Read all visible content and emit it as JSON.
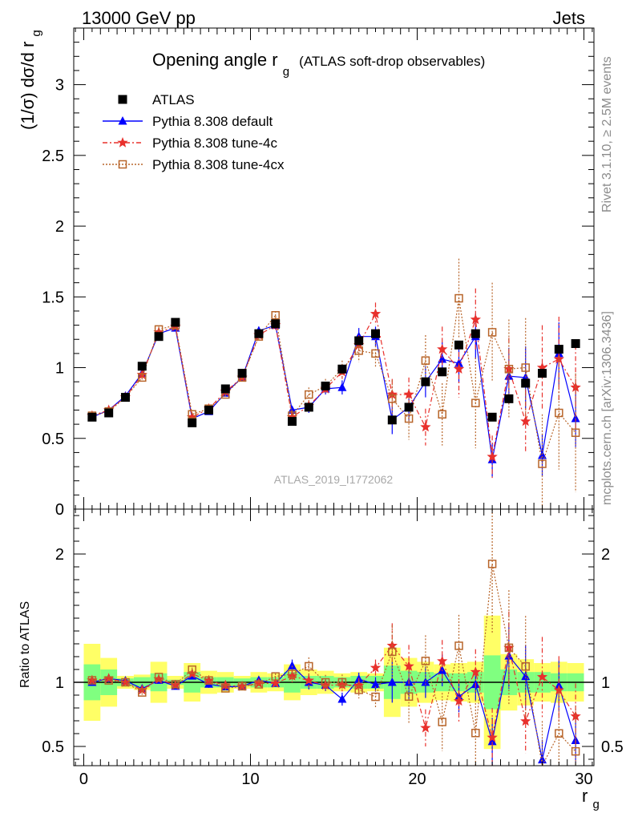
{
  "header": {
    "left": "13000 GeV pp",
    "right": "Jets"
  },
  "side_labels": {
    "top": "Rivet 3.1.10, ≥ 2.5M events",
    "bottom": "mcplots.cern.ch [arXiv:1306.3436]"
  },
  "analysis_id": "ATLAS_2019_I1772062",
  "colors": {
    "data": "#000000",
    "default": "#0000ff",
    "tune4c": "#e8302c",
    "tune4cx": "#b8652a",
    "band_inner": "#80ff80",
    "band_outer": "#ffff66"
  },
  "chart_data": [
    {
      "type": "scatter",
      "title": "Opening angle r_g",
      "title_main": "Opening angle r",
      "title_sub": "g",
      "title_note": "(ATLAS soft-drop observables)",
      "ylabel": "(1/σ) dσ/d r_g",
      "ylabel_main": "(1/σ) dσ/d r",
      "ylabel_sub": "g",
      "xlabel": "r_g",
      "xlabel_main": "r",
      "xlabel_sub": "g",
      "xlim": [
        -0.6,
        30.6
      ],
      "ylim": [
        0,
        3.4
      ],
      "y_ticks": [
        "0",
        "0.5",
        "1",
        "1.5",
        "2",
        "2.5",
        "3"
      ],
      "x": [
        0.5,
        1.5,
        2.5,
        3.5,
        4.5,
        5.5,
        6.5,
        7.5,
        8.5,
        9.5,
        10.5,
        11.5,
        12.5,
        13.5,
        14.5,
        15.5,
        16.5,
        17.5,
        18.5,
        19.5,
        20.5,
        21.5,
        22.5,
        23.5,
        24.5,
        25.5,
        26.5,
        27.5,
        28.5,
        29.5
      ],
      "series": [
        {
          "name": "ATLAS",
          "key": "data",
          "marker": "square",
          "values": [
            0.65,
            0.68,
            0.79,
            1.01,
            1.22,
            1.32,
            0.61,
            0.7,
            0.85,
            0.96,
            1.24,
            1.31,
            0.62,
            0.72,
            0.87,
            0.99,
            1.19,
            1.24,
            0.63,
            0.72,
            0.9,
            0.97,
            1.16,
            1.24,
            0.65,
            0.78,
            0.89,
            0.96,
            1.13,
            1.17
          ]
        },
        {
          "name": "Pythia 8.308 default",
          "key": "default",
          "marker": "triangle",
          "values": [
            0.65,
            0.7,
            0.8,
            0.96,
            1.24,
            1.28,
            0.64,
            0.69,
            0.82,
            0.93,
            1.26,
            1.3,
            0.7,
            0.72,
            0.85,
            0.86,
            1.22,
            1.22,
            0.63,
            0.72,
            0.9,
            1.06,
            1.03,
            1.22,
            0.35,
            0.94,
            0.93,
            0.38,
            1.1,
            0.64
          ],
          "errors": [
            0.01,
            0.01,
            0.01,
            0.02,
            0.02,
            0.02,
            0.01,
            0.02,
            0.02,
            0.02,
            0.03,
            0.03,
            0.03,
            0.04,
            0.04,
            0.05,
            0.06,
            0.07,
            0.1,
            0.1,
            0.11,
            0.12,
            0.14,
            0.16,
            0.12,
            0.2,
            0.22,
            0.15,
            0.22,
            0.2
          ]
        },
        {
          "name": "Pythia 8.308 tune-4c",
          "key": "tune4c",
          "marker": "star",
          "values": [
            0.66,
            0.7,
            0.79,
            0.95,
            1.25,
            1.29,
            0.65,
            0.71,
            0.83,
            0.93,
            1.23,
            1.3,
            0.65,
            0.73,
            0.85,
            0.97,
            1.16,
            1.38,
            0.81,
            0.81,
            0.58,
            1.13,
            0.99,
            1.34,
            0.37,
            0.99,
            0.62,
            1.0,
            1.06,
            0.86
          ],
          "errors": [
            0.01,
            0.01,
            0.01,
            0.02,
            0.02,
            0.02,
            0.01,
            0.02,
            0.02,
            0.02,
            0.03,
            0.03,
            0.03,
            0.04,
            0.04,
            0.05,
            0.07,
            0.08,
            0.11,
            0.12,
            0.13,
            0.16,
            0.2,
            0.22,
            0.15,
            0.22,
            0.22,
            0.3,
            0.3,
            0.3
          ]
        },
        {
          "name": "Pythia 8.308 tune-4cx",
          "key": "tune4cx",
          "marker": "opensquare",
          "values": [
            0.66,
            0.69,
            0.79,
            0.93,
            1.27,
            1.3,
            0.67,
            0.71,
            0.81,
            0.93,
            1.22,
            1.37,
            0.66,
            0.81,
            0.87,
            0.99,
            1.12,
            1.1,
            0.78,
            0.64,
            1.05,
            0.67,
            1.49,
            0.75,
            1.25,
            0.99,
            1.0,
            0.32,
            0.68,
            0.54
          ],
          "errors": [
            0.01,
            0.01,
            0.01,
            0.02,
            0.02,
            0.02,
            0.01,
            0.02,
            0.02,
            0.02,
            0.03,
            0.03,
            0.04,
            0.05,
            0.05,
            0.06,
            0.08,
            0.1,
            0.13,
            0.15,
            0.18,
            0.22,
            0.28,
            0.32,
            0.35,
            0.35,
            0.35,
            0.35,
            0.4,
            0.42
          ]
        }
      ]
    },
    {
      "type": "scatter",
      "ylabel": "Ratio to ATLAS",
      "ylim": [
        0.35,
        2.35
      ],
      "y_ticks": [
        "0.5",
        "1",
        "2"
      ],
      "x_ticks": [
        "0",
        "10",
        "20",
        "30"
      ],
      "band_inner": [
        0.14,
        0.1,
        0.03,
        0.04,
        0.07,
        0.02,
        0.08,
        0.04,
        0.04,
        0.03,
        0.04,
        0.04,
        0.08,
        0.05,
        0.05,
        0.04,
        0.05,
        0.05,
        0.13,
        0.09,
        0.08,
        0.07,
        0.07,
        0.08,
        0.21,
        0.1,
        0.08,
        0.08,
        0.07,
        0.07
      ],
      "band_outer": [
        0.3,
        0.19,
        0.05,
        0.06,
        0.16,
        0.05,
        0.15,
        0.09,
        0.08,
        0.05,
        0.08,
        0.07,
        0.14,
        0.1,
        0.09,
        0.07,
        0.08,
        0.07,
        0.27,
        0.19,
        0.16,
        0.14,
        0.15,
        0.16,
        0.52,
        0.22,
        0.18,
        0.15,
        0.16,
        0.15
      ]
    }
  ]
}
